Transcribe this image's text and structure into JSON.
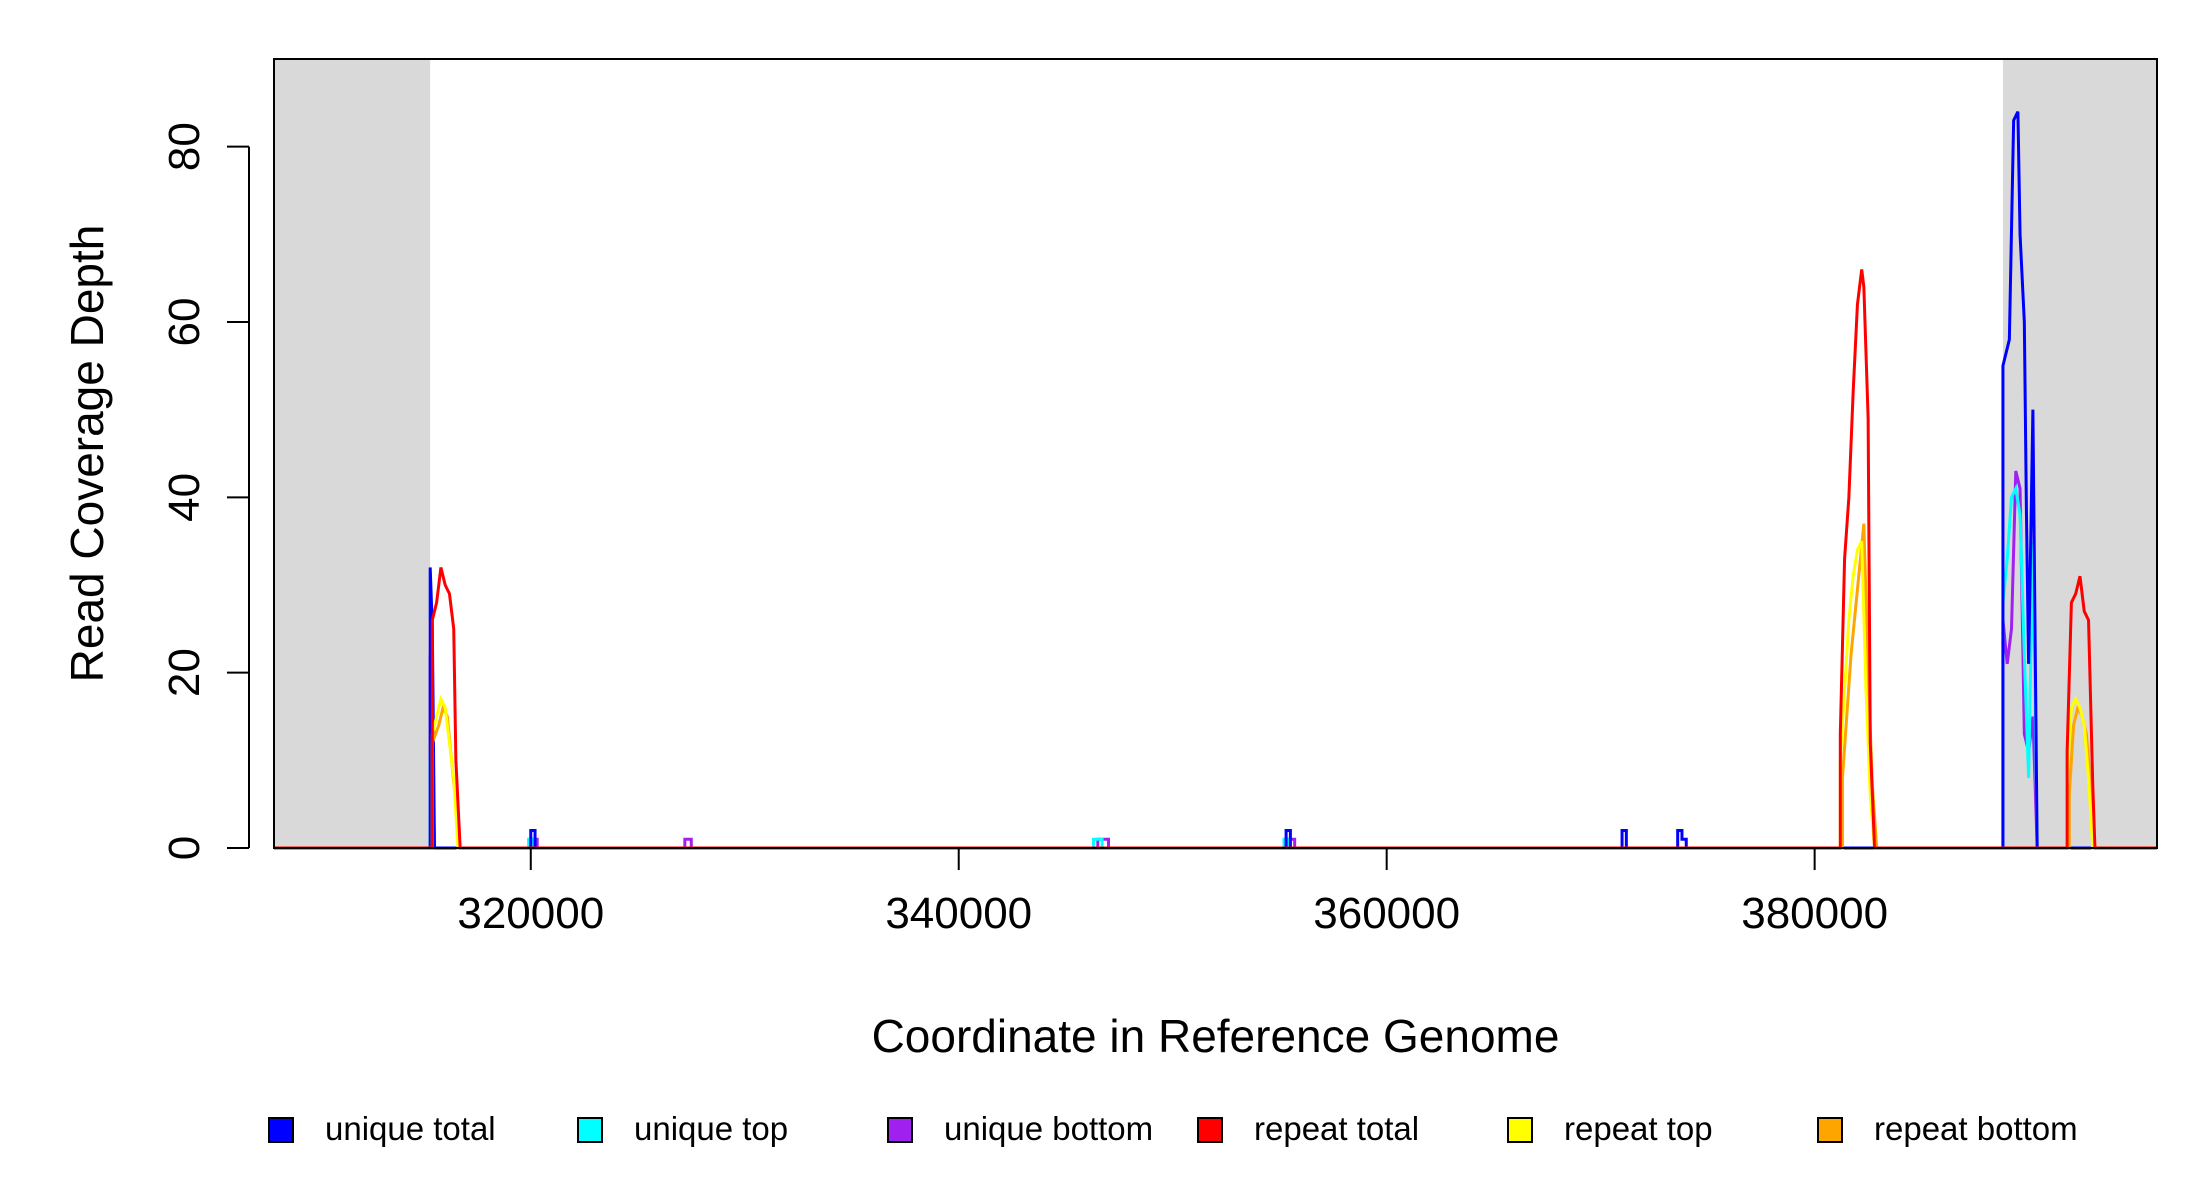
{
  "chart_data": {
    "type": "line",
    "xlabel": "Coordinate in Reference Genome",
    "ylabel": "Read Coverage Depth",
    "xlim": [
      308000,
      396000
    ],
    "ylim": [
      0,
      90
    ],
    "x_ticks": [
      320000,
      340000,
      360000,
      380000
    ],
    "y_ticks": [
      0,
      20,
      40,
      60,
      80
    ],
    "shaded_regions": [
      {
        "from": 308000,
        "to": 315300,
        "color": "#d9d9d9"
      },
      {
        "from": 388800,
        "to": 396000,
        "color": "#d9d9d9"
      }
    ],
    "grid": false,
    "legend_position": "bottom",
    "series": [
      {
        "name": "unique bottom",
        "color": "#a020f0",
        "points": [
          [
            308000,
            0
          ],
          [
            315300,
            0
          ],
          [
            315300,
            22
          ],
          [
            315400,
            12
          ],
          [
            315500,
            0
          ],
          [
            320000,
            0
          ],
          [
            320000,
            1
          ],
          [
            320300,
            1
          ],
          [
            320300,
            0
          ],
          [
            327200,
            0
          ],
          [
            327200,
            1
          ],
          [
            327500,
            1
          ],
          [
            327500,
            0
          ],
          [
            346500,
            0
          ],
          [
            346500,
            1
          ],
          [
            347000,
            1
          ],
          [
            347000,
            0
          ],
          [
            355400,
            0
          ],
          [
            355400,
            1
          ],
          [
            355700,
            1
          ],
          [
            355700,
            0
          ],
          [
            388800,
            0
          ],
          [
            388800,
            26
          ],
          [
            389000,
            21
          ],
          [
            389200,
            25
          ],
          [
            389400,
            43
          ],
          [
            389600,
            41
          ],
          [
            389800,
            13
          ],
          [
            390000,
            11
          ],
          [
            390200,
            15
          ],
          [
            390400,
            0
          ],
          [
            396000,
            0
          ]
        ]
      },
      {
        "name": "unique top",
        "color": "#00ffff",
        "points": [
          [
            308000,
            0
          ],
          [
            315300,
            0
          ],
          [
            315300,
            10
          ],
          [
            315400,
            12
          ],
          [
            315500,
            0
          ],
          [
            319900,
            0
          ],
          [
            319900,
            1
          ],
          [
            320100,
            1
          ],
          [
            320100,
            0
          ],
          [
            346300,
            0
          ],
          [
            346300,
            1
          ],
          [
            346700,
            1
          ],
          [
            346700,
            0
          ],
          [
            355200,
            0
          ],
          [
            355200,
            1
          ],
          [
            355400,
            1
          ],
          [
            355400,
            0
          ],
          [
            388800,
            0
          ],
          [
            388800,
            28
          ],
          [
            389000,
            33
          ],
          [
            389200,
            40
          ],
          [
            389400,
            41
          ],
          [
            389600,
            38
          ],
          [
            389800,
            22
          ],
          [
            390000,
            8
          ],
          [
            390200,
            35
          ],
          [
            390400,
            0
          ],
          [
            396000,
            0
          ]
        ]
      },
      {
        "name": "unique total",
        "color": "#0000ff",
        "points": [
          [
            308000,
            0
          ],
          [
            315300,
            0
          ],
          [
            315300,
            32
          ],
          [
            315400,
            25
          ],
          [
            315500,
            0
          ],
          [
            320000,
            0
          ],
          [
            320000,
            2
          ],
          [
            320200,
            2
          ],
          [
            320200,
            0
          ],
          [
            355300,
            0
          ],
          [
            355300,
            2
          ],
          [
            355500,
            2
          ],
          [
            355500,
            0
          ],
          [
            371000,
            0
          ],
          [
            371000,
            2
          ],
          [
            371200,
            2
          ],
          [
            371200,
            0
          ],
          [
            373600,
            0
          ],
          [
            373600,
            2
          ],
          [
            373800,
            2
          ],
          [
            373800,
            1
          ],
          [
            374000,
            1
          ],
          [
            374000,
            0
          ],
          [
            388800,
            0
          ],
          [
            388800,
            55
          ],
          [
            389100,
            58
          ],
          [
            389300,
            83
          ],
          [
            389500,
            84
          ],
          [
            389600,
            70
          ],
          [
            389800,
            60
          ],
          [
            389900,
            38
          ],
          [
            390000,
            21
          ],
          [
            390100,
            35
          ],
          [
            390200,
            50
          ],
          [
            390400,
            0
          ],
          [
            396000,
            0
          ]
        ]
      },
      {
        "name": "repeat bottom",
        "color": "#ffa500",
        "points": [
          [
            308000,
            0
          ],
          [
            315300,
            0
          ],
          [
            315400,
            0
          ],
          [
            315400,
            12
          ],
          [
            315700,
            14
          ],
          [
            315900,
            16
          ],
          [
            316100,
            15
          ],
          [
            316300,
            10
          ],
          [
            316500,
            5
          ],
          [
            316700,
            0
          ],
          [
            381300,
            0
          ],
          [
            381300,
            8
          ],
          [
            381500,
            15
          ],
          [
            381700,
            22
          ],
          [
            381900,
            27
          ],
          [
            382100,
            32
          ],
          [
            382300,
            37
          ],
          [
            382500,
            20
          ],
          [
            382700,
            7
          ],
          [
            382900,
            0
          ],
          [
            391900,
            0
          ],
          [
            391900,
            6
          ],
          [
            392100,
            14
          ],
          [
            392300,
            16
          ],
          [
            392500,
            15
          ],
          [
            392700,
            13
          ],
          [
            392900,
            7
          ],
          [
            393100,
            0
          ],
          [
            396000,
            0
          ]
        ]
      },
      {
        "name": "repeat top",
        "color": "#ffff00",
        "points": [
          [
            308000,
            0
          ],
          [
            315300,
            0
          ],
          [
            315400,
            0
          ],
          [
            315400,
            13
          ],
          [
            315600,
            15
          ],
          [
            315800,
            17
          ],
          [
            316000,
            16
          ],
          [
            316200,
            12
          ],
          [
            316400,
            8
          ],
          [
            316600,
            0
          ],
          [
            381200,
            0
          ],
          [
            381200,
            10
          ],
          [
            381400,
            18
          ],
          [
            381600,
            26
          ],
          [
            381800,
            31
          ],
          [
            382000,
            34
          ],
          [
            382200,
            35
          ],
          [
            382400,
            18
          ],
          [
            382600,
            6
          ],
          [
            382800,
            0
          ],
          [
            391800,
            0
          ],
          [
            391800,
            8
          ],
          [
            392000,
            16
          ],
          [
            392200,
            17
          ],
          [
            392400,
            16
          ],
          [
            392600,
            14
          ],
          [
            392800,
            8
          ],
          [
            393000,
            0
          ],
          [
            396000,
            0
          ]
        ]
      },
      {
        "name": "repeat total",
        "color": "#ff0000",
        "points": [
          [
            308000,
            0
          ],
          [
            315300,
            0
          ],
          [
            315400,
            0
          ],
          [
            315400,
            26
          ],
          [
            315600,
            28
          ],
          [
            315800,
            32
          ],
          [
            316000,
            30
          ],
          [
            316200,
            29
          ],
          [
            316400,
            25
          ],
          [
            316500,
            10
          ],
          [
            316700,
            0
          ],
          [
            381200,
            0
          ],
          [
            381200,
            13
          ],
          [
            381400,
            33
          ],
          [
            381600,
            40
          ],
          [
            381800,
            52
          ],
          [
            382000,
            62
          ],
          [
            382200,
            66
          ],
          [
            382300,
            64
          ],
          [
            382500,
            49
          ],
          [
            382600,
            12
          ],
          [
            382800,
            0
          ],
          [
            391800,
            0
          ],
          [
            391800,
            11
          ],
          [
            392000,
            28
          ],
          [
            392200,
            29
          ],
          [
            392400,
            31
          ],
          [
            392600,
            27
          ],
          [
            392800,
            26
          ],
          [
            393000,
            7
          ],
          [
            393100,
            0
          ],
          [
            396000,
            0
          ]
        ]
      }
    ],
    "legend": [
      {
        "name": "unique total",
        "color": "#0000ff"
      },
      {
        "name": "unique top",
        "color": "#00ffff"
      },
      {
        "name": "unique bottom",
        "color": "#a020f0"
      },
      {
        "name": "repeat total",
        "color": "#ff0000"
      },
      {
        "name": "repeat top",
        "color": "#ffff00"
      },
      {
        "name": "repeat bottom",
        "color": "#ffa500"
      }
    ]
  }
}
